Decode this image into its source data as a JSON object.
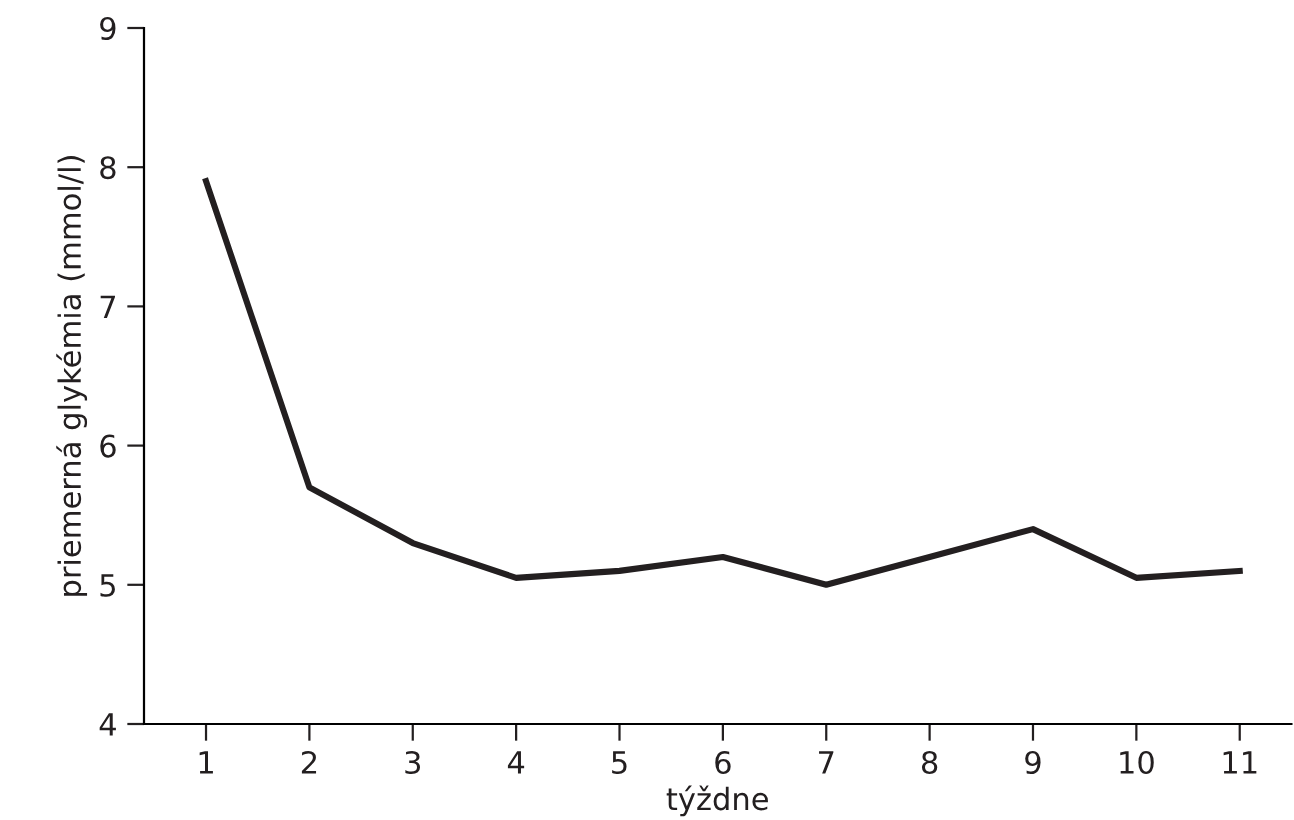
{
  "chart_data": {
    "type": "line",
    "xlabel": "týždne",
    "ylabel": "priemerná glykémia (mmol/l)",
    "x": [
      1,
      2,
      3,
      4,
      5,
      6,
      7,
      8,
      9,
      10,
      11
    ],
    "series": [
      {
        "color": "#231f20",
        "values": [
          7.9,
          5.7,
          5.3,
          5.05,
          5.1,
          5.2,
          5.0,
          5.2,
          5.4,
          5.05,
          5.1
        ]
      }
    ],
    "xlim": [
      0.4,
      11.5
    ],
    "xticks": [
      1,
      2,
      3,
      4,
      5,
      6,
      7,
      8,
      9,
      10,
      11
    ],
    "ylim": [
      4,
      9
    ],
    "yticks": [
      4,
      5,
      6,
      7,
      8,
      9
    ],
    "grid": false,
    "legend": false,
    "marker": "none",
    "line_style": "solid"
  }
}
